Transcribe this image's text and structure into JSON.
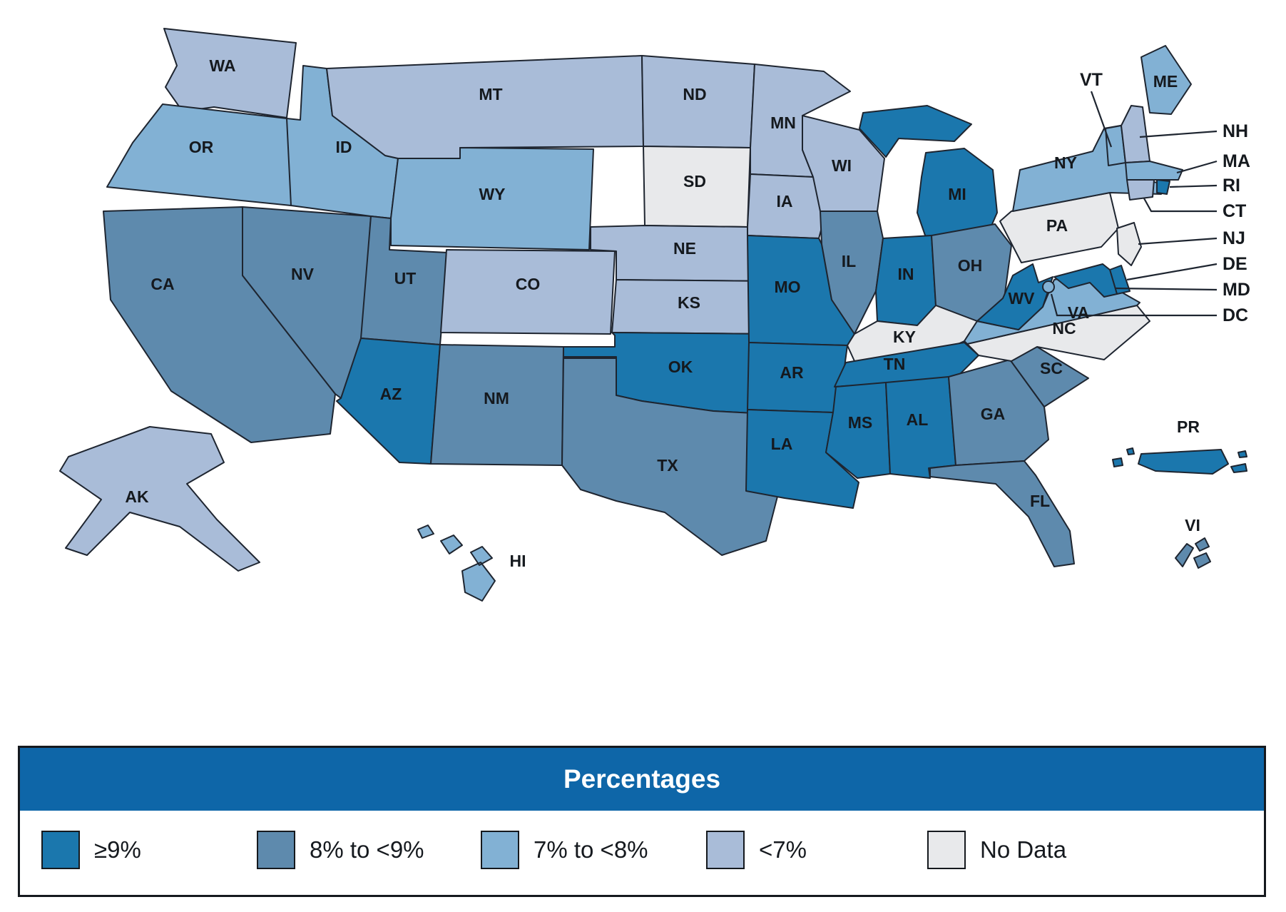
{
  "title_band": "Percentages",
  "legend": {
    "header_color": "#0E66A8",
    "items": [
      {
        "key": "ge9",
        "label": "≥9%",
        "color": "#1B77AD"
      },
      {
        "key": "e8to9",
        "label": "8% to <9%",
        "color": "#5E8AAD"
      },
      {
        "key": "e7to8",
        "label": "7% to <8%",
        "color": "#82B1D4"
      },
      {
        "key": "lt7",
        "label": "<7%",
        "color": "#A9BCD8"
      },
      {
        "key": "nodata",
        "label": "No Data",
        "color": "#E8E9EB"
      }
    ]
  },
  "map": {
    "vt_label": "VT",
    "callouts": [
      "NH",
      "MA",
      "RI",
      "CT",
      "NJ",
      "DE",
      "MD",
      "DC"
    ],
    "states": [
      {
        "abbr": "WA",
        "category": "lt7"
      },
      {
        "abbr": "OR",
        "category": "e7to8"
      },
      {
        "abbr": "CA",
        "category": "e8to9"
      },
      {
        "abbr": "NV",
        "category": "e8to9"
      },
      {
        "abbr": "ID",
        "category": "e7to8"
      },
      {
        "abbr": "MT",
        "category": "lt7"
      },
      {
        "abbr": "WY",
        "category": "e7to8"
      },
      {
        "abbr": "UT",
        "category": "e8to9"
      },
      {
        "abbr": "CO",
        "category": "lt7"
      },
      {
        "abbr": "AZ",
        "category": "ge9"
      },
      {
        "abbr": "NM",
        "category": "e8to9"
      },
      {
        "abbr": "ND",
        "category": "lt7"
      },
      {
        "abbr": "SD",
        "category": "nodata"
      },
      {
        "abbr": "NE",
        "category": "lt7"
      },
      {
        "abbr": "KS",
        "category": "lt7"
      },
      {
        "abbr": "OK",
        "category": "ge9"
      },
      {
        "abbr": "TX",
        "category": "e8to9"
      },
      {
        "abbr": "MN",
        "category": "lt7"
      },
      {
        "abbr": "IA",
        "category": "lt7"
      },
      {
        "abbr": "MO",
        "category": "ge9"
      },
      {
        "abbr": "AR",
        "category": "ge9"
      },
      {
        "abbr": "LA",
        "category": "ge9"
      },
      {
        "abbr": "WI",
        "category": "lt7"
      },
      {
        "abbr": "IL",
        "category": "e8to9"
      },
      {
        "abbr": "MI",
        "category": "ge9"
      },
      {
        "abbr": "IN",
        "category": "ge9"
      },
      {
        "abbr": "OH",
        "category": "e8to9"
      },
      {
        "abbr": "KY",
        "category": "nodata"
      },
      {
        "abbr": "TN",
        "category": "ge9"
      },
      {
        "abbr": "MS",
        "category": "ge9"
      },
      {
        "abbr": "AL",
        "category": "ge9"
      },
      {
        "abbr": "GA",
        "category": "e8to9"
      },
      {
        "abbr": "SC",
        "category": "e8to9"
      },
      {
        "abbr": "NC",
        "category": "nodata"
      },
      {
        "abbr": "VA",
        "category": "e7to8"
      },
      {
        "abbr": "WV",
        "category": "ge9"
      },
      {
        "abbr": "PA",
        "category": "nodata"
      },
      {
        "abbr": "NY",
        "category": "e7to8"
      },
      {
        "abbr": "VT",
        "category": "e7to8"
      },
      {
        "abbr": "NH",
        "category": "lt7"
      },
      {
        "abbr": "ME",
        "category": "e7to8"
      },
      {
        "abbr": "MA",
        "category": "e7to8"
      },
      {
        "abbr": "RI",
        "category": "ge9"
      },
      {
        "abbr": "CT",
        "category": "lt7"
      },
      {
        "abbr": "NJ",
        "category": "nodata"
      },
      {
        "abbr": "DE",
        "category": "ge9"
      },
      {
        "abbr": "MD",
        "category": "ge9"
      },
      {
        "abbr": "DC",
        "category": "e7to8"
      },
      {
        "abbr": "FL",
        "category": "e8to9"
      },
      {
        "abbr": "AK",
        "category": "lt7"
      },
      {
        "abbr": "HI",
        "category": "e7to8"
      },
      {
        "abbr": "PR",
        "category": "ge9"
      },
      {
        "abbr": "VI",
        "category": "e8to9"
      }
    ]
  }
}
